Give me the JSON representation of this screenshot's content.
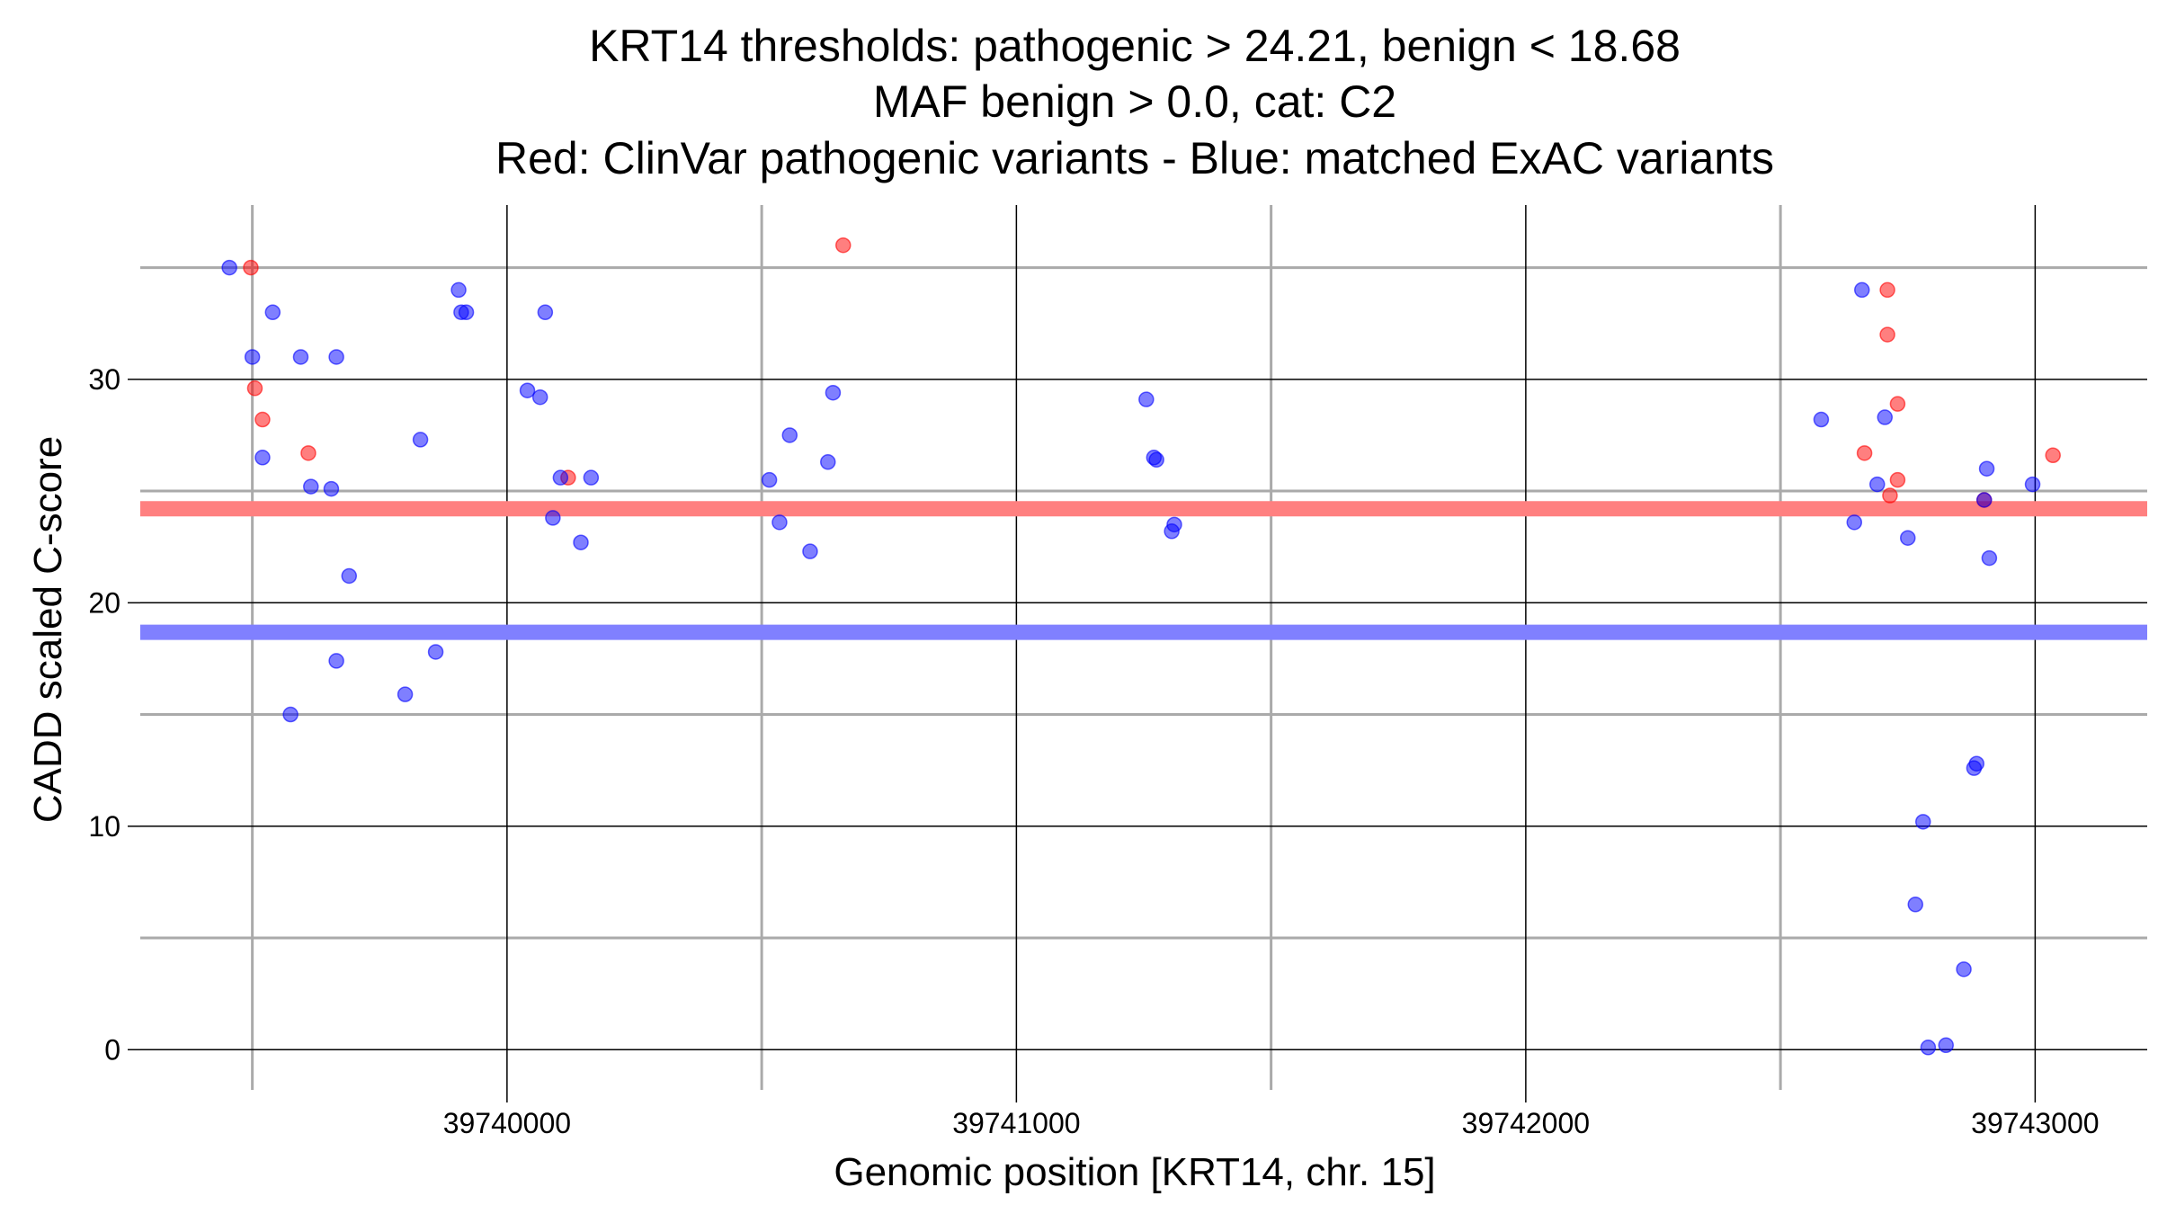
{
  "chart_data": {
    "type": "scatter",
    "title_lines": [
      "KRT14 thresholds: pathogenic > 24.21, benign < 18.68",
      "MAF benign > 0.0, cat: C2",
      "Red: ClinVar pathogenic variants - Blue: matched ExAC variants"
    ],
    "xlabel": "Genomic position [KRT14, chr. 15]",
    "ylabel": "CADD scaled C-score",
    "xlim": [
      39739280,
      39743220
    ],
    "ylim": [
      -1.8,
      37.8
    ],
    "x_major_ticks": [
      39740000,
      39741000,
      39742000,
      39743000
    ],
    "x_tick_labels": [
      "39740000",
      "39741000",
      "39742000",
      "39743000"
    ],
    "x_minor_gridlines": [
      39739500,
      39740500,
      39741500,
      39742500
    ],
    "y_major_ticks": [
      0,
      10,
      20,
      30
    ],
    "y_tick_labels": [
      "0",
      "10",
      "20",
      "30"
    ],
    "y_minor_gridlines": [
      5,
      15,
      25,
      35
    ],
    "grid": true,
    "thresholds": [
      {
        "label": "pathogenic",
        "value": 24.21,
        "color": "#ff8080"
      },
      {
        "label": "benign",
        "value": 18.68,
        "color": "#8080ff"
      }
    ],
    "series": [
      {
        "name": "ClinVar pathogenic variants",
        "color": "#ff0000",
        "points": [
          [
            39739497,
            35.0
          ],
          [
            39739505,
            29.6
          ],
          [
            39739520,
            28.2
          ],
          [
            39739610,
            26.7
          ],
          [
            39740120,
            25.6
          ],
          [
            39740660,
            36.0
          ],
          [
            39742665,
            26.7
          ],
          [
            39742710,
            34.0
          ],
          [
            39742710,
            32.0
          ],
          [
            39742715,
            24.8
          ],
          [
            39742730,
            28.9
          ],
          [
            39742730,
            25.5
          ],
          [
            39742900,
            24.6
          ],
          [
            39743035,
            26.6
          ]
        ]
      },
      {
        "name": "matched ExAC variants",
        "color": "#0000ff",
        "points": [
          [
            39739455,
            35.0
          ],
          [
            39739500,
            31.0
          ],
          [
            39739520,
            26.5
          ],
          [
            39739540,
            33.0
          ],
          [
            39739575,
            15.0
          ],
          [
            39739595,
            31.0
          ],
          [
            39739615,
            25.2
          ],
          [
            39739655,
            25.1
          ],
          [
            39739665,
            31.0
          ],
          [
            39739665,
            17.4
          ],
          [
            39739690,
            21.2
          ],
          [
            39739800,
            15.9
          ],
          [
            39739830,
            27.3
          ],
          [
            39739860,
            17.8
          ],
          [
            39739905,
            34.0
          ],
          [
            39739910,
            33.0
          ],
          [
            39739920,
            33.0
          ],
          [
            39740040,
            29.5
          ],
          [
            39740065,
            29.2
          ],
          [
            39740075,
            33.0
          ],
          [
            39740090,
            23.8
          ],
          [
            39740105,
            25.6
          ],
          [
            39740145,
            22.7
          ],
          [
            39740165,
            25.6
          ],
          [
            39740515,
            25.5
          ],
          [
            39740535,
            23.6
          ],
          [
            39740555,
            27.5
          ],
          [
            39740595,
            22.3
          ],
          [
            39740630,
            26.3
          ],
          [
            39740640,
            29.4
          ],
          [
            39741255,
            29.1
          ],
          [
            39741270,
            26.5
          ],
          [
            39741275,
            26.4
          ],
          [
            39741305,
            23.2
          ],
          [
            39741310,
            23.5
          ],
          [
            39742580,
            28.2
          ],
          [
            39742645,
            23.6
          ],
          [
            39742660,
            34.0
          ],
          [
            39742690,
            25.3
          ],
          [
            39742705,
            28.3
          ],
          [
            39742750,
            22.9
          ],
          [
            39742765,
            6.5
          ],
          [
            39742780,
            10.2
          ],
          [
            39742790,
            0.1
          ],
          [
            39742825,
            0.2
          ],
          [
            39742860,
            3.6
          ],
          [
            39742880,
            12.6
          ],
          [
            39742885,
            12.8
          ],
          [
            39742900,
            24.6
          ],
          [
            39742905,
            26.0
          ],
          [
            39742910,
            22.0
          ],
          [
            39742995,
            25.3
          ]
        ]
      }
    ]
  }
}
